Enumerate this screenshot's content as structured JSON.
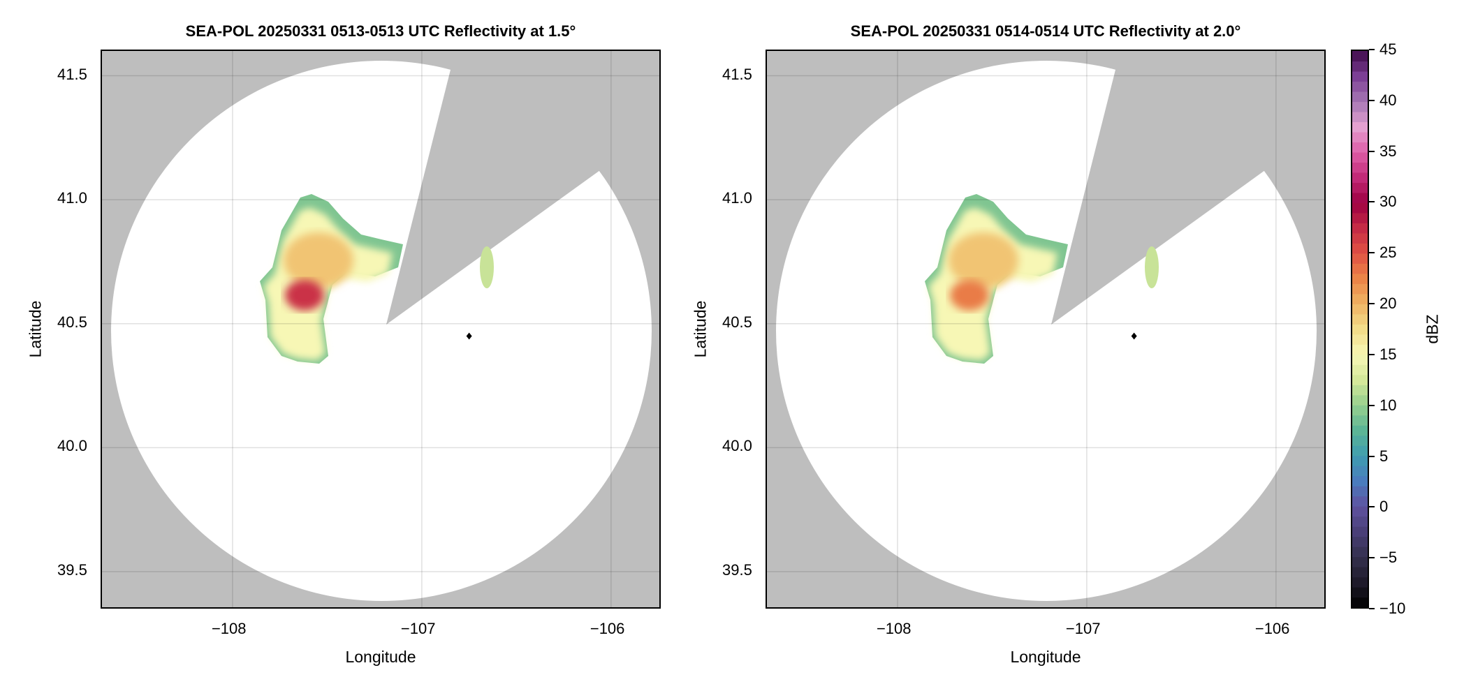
{
  "chart_data": [
    {
      "type": "heatmap",
      "title": "SEA-POL 20250331 0513-0513 UTC Reflectivity at 1.5°",
      "xlabel": "Longitude",
      "ylabel": "Latitude",
      "xlim": [
        -108.69,
        -105.73
      ],
      "ylim": [
        39.345,
        41.6
      ],
      "xticks": [
        "−108",
        "−107",
        "−106"
      ],
      "xtick_values": [
        -108,
        -107,
        -106
      ],
      "yticks": [
        "39.5",
        "40.0",
        "40.5",
        "41.0",
        "41.5"
      ],
      "ytick_values": [
        39.5,
        40.0,
        40.5,
        41.0,
        41.5
      ],
      "grid": true,
      "radar_location": {
        "lon": -107.18,
        "lat": 40.49
      },
      "marker": {
        "lon": -106.75,
        "lat": 40.45
      },
      "missing_color": "#bebebe",
      "max_echo_dBZ": 27
    },
    {
      "type": "heatmap",
      "title": "SEA-POL 20250331 0514-0514 UTC Reflectivity at 2.0°",
      "xlabel": "Longitude",
      "ylabel": "Latitude",
      "xlim": [
        -108.69,
        -105.73
      ],
      "ylim": [
        39.345,
        41.6
      ],
      "xticks": [
        "−108",
        "−107",
        "−106"
      ],
      "xtick_values": [
        -108,
        -107,
        -106
      ],
      "yticks": [
        "39.5",
        "40.0",
        "40.5",
        "41.0",
        "41.5"
      ],
      "ytick_values": [
        39.5,
        40.0,
        40.5,
        41.0,
        41.5
      ],
      "grid": true,
      "radar_location": {
        "lon": -107.18,
        "lat": 40.49
      },
      "marker": {
        "lon": -106.75,
        "lat": 40.45
      },
      "missing_color": "#bebebe",
      "max_echo_dBZ": 23
    }
  ],
  "colorbar": {
    "label": "dBZ",
    "range": [
      -10,
      45
    ],
    "ticks": [
      "−10",
      "−5",
      "0",
      "5",
      "10",
      "15",
      "20",
      "25",
      "30",
      "35",
      "40",
      "45"
    ],
    "tick_values": [
      -10,
      -5,
      0,
      5,
      10,
      15,
      20,
      25,
      30,
      35,
      40,
      45
    ],
    "colors": [
      "#000000",
      "#1e1a2a",
      "#34304e",
      "#4a3f78",
      "#5f52a0",
      "#4a7cbd",
      "#3f9db0",
      "#5cb596",
      "#96cf8e",
      "#d4e89a",
      "#f7f7b5",
      "#f3dd8a",
      "#efb464",
      "#eb8548",
      "#e05244",
      "#c52b46",
      "#9e0142",
      "#c22a78",
      "#de5ea8",
      "#e4a0d0",
      "#a677b4",
      "#7c3f95",
      "#3f0a4a"
    ]
  }
}
